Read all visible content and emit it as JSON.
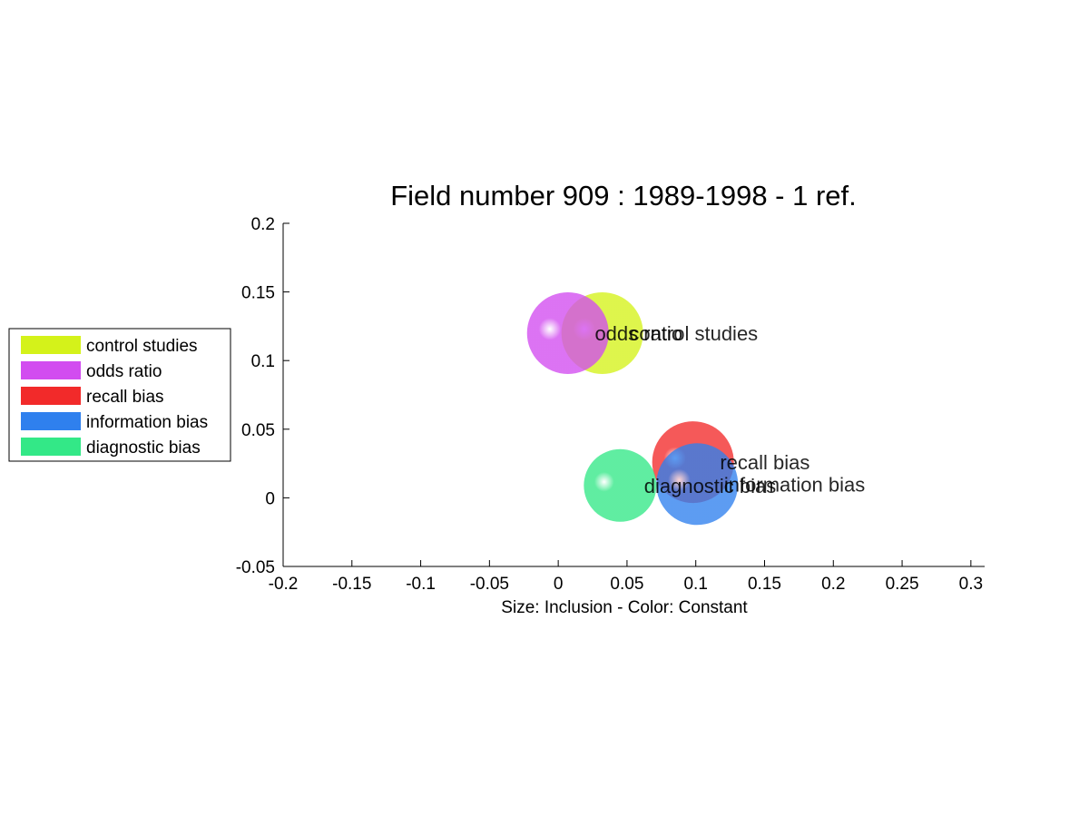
{
  "chart_data": {
    "type": "scatter",
    "title": "Field number 909 : 1989-1998  - 1 ref.",
    "xlabel": "Size: Inclusion - Color: Constant",
    "ylabel": "",
    "xlim": [
      -0.2,
      0.31
    ],
    "ylim": [
      -0.05,
      0.2
    ],
    "xticks": [
      "-0.2",
      "-0.15",
      "-0.1",
      "-0.05",
      "0",
      "0.05",
      "0.1",
      "0.15",
      "0.2",
      "0.25",
      "0.3"
    ],
    "yticks": [
      "-0.05",
      "0",
      "0.05",
      "0.1",
      "0.15",
      "0.2"
    ],
    "grid": false,
    "legend_position": "left",
    "series": [
      {
        "name": "control studies",
        "x": 0.032,
        "y": 0.12,
        "size": 0.9,
        "color": "#d4f21a"
      },
      {
        "name": "odds ratio",
        "x": 0.007,
        "y": 0.12,
        "size": 0.9,
        "color": "#d24cf0"
      },
      {
        "name": "recall bias",
        "x": 0.098,
        "y": 0.026,
        "size": 0.9,
        "color": "#f22a2a"
      },
      {
        "name": "information bias",
        "x": 0.101,
        "y": 0.01,
        "size": 0.9,
        "color": "#2f80ee"
      },
      {
        "name": "diagnostic bias",
        "x": 0.045,
        "y": 0.009,
        "size": 0.8,
        "color": "#33e887"
      }
    ]
  }
}
